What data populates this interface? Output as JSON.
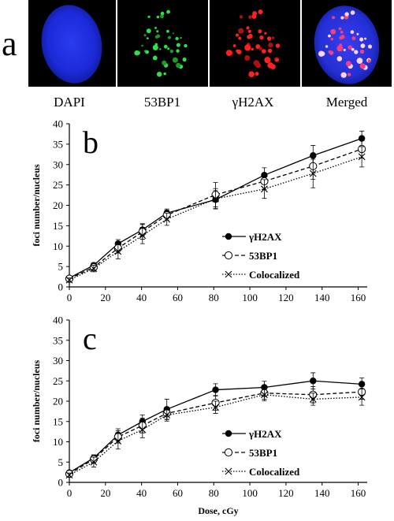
{
  "panel_a": {
    "letter": "a",
    "captions": [
      "DAPI",
      "53BP1",
      "γH2AX",
      "Merged"
    ]
  },
  "chart_data": [
    {
      "type": "line",
      "panel": "b",
      "title": "",
      "xlabel": "",
      "ylabel": "foci number/nucleus",
      "xlim": [
        0,
        165
      ],
      "ylim": [
        0,
        40
      ],
      "xticks": [
        0,
        20,
        40,
        60,
        80,
        100,
        120,
        140,
        160
      ],
      "yticks": [
        0,
        5,
        10,
        15,
        20,
        25,
        30,
        35,
        40
      ],
      "grid": false,
      "legend_position": "center-right",
      "x": [
        0,
        13.5,
        27,
        40.5,
        54,
        81,
        108,
        135,
        162
      ],
      "series": [
        {
          "name": "γH2AX",
          "marker": "filled-circle",
          "line": "solid",
          "values": [
            2.2,
            5.3,
            10.6,
            14.0,
            18.1,
            21.4,
            27.4,
            32.2,
            36.4
          ],
          "errors": [
            0.5,
            0.6,
            1.0,
            1.5,
            1.0,
            2.2,
            1.8,
            2.5,
            1.8
          ]
        },
        {
          "name": "53BP1",
          "marker": "open-circle",
          "line": "dashed",
          "values": [
            2.0,
            4.8,
            9.5,
            13.5,
            17.6,
            22.6,
            25.9,
            29.6,
            33.8
          ],
          "errors": [
            0.5,
            0.7,
            1.2,
            1.8,
            1.2,
            3.0,
            2.0,
            3.2,
            2.2
          ]
        },
        {
          "name": "Colocalized",
          "marker": "x",
          "line": "dotted",
          "values": [
            1.7,
            4.5,
            8.7,
            12.6,
            16.6,
            21.6,
            24.0,
            27.8,
            31.9
          ],
          "errors": [
            0.5,
            0.8,
            1.8,
            2.0,
            1.5,
            2.5,
            2.3,
            3.5,
            2.5
          ]
        }
      ]
    },
    {
      "type": "line",
      "panel": "c",
      "title": "",
      "xlabel": "Dose, cGy",
      "ylabel": "foci number/nucleus",
      "xlim": [
        0,
        165
      ],
      "ylim": [
        0,
        40
      ],
      "xticks": [
        0,
        20,
        40,
        60,
        80,
        100,
        120,
        140,
        160
      ],
      "yticks": [
        0,
        5,
        10,
        15,
        20,
        25,
        30,
        35,
        40
      ],
      "grid": false,
      "legend_position": "center-right",
      "x": [
        0,
        13.5,
        27,
        40.5,
        54,
        81,
        108,
        135,
        162
      ],
      "series": [
        {
          "name": "γH2AX",
          "marker": "filled-circle",
          "line": "solid",
          "values": [
            2.4,
            6.0,
            11.7,
            15.0,
            18.0,
            22.8,
            23.4,
            25.0,
            24.2
          ],
          "errors": [
            0.5,
            0.8,
            1.5,
            1.6,
            2.5,
            1.5,
            1.5,
            2.0,
            1.5
          ]
        },
        {
          "name": "53BP1",
          "marker": "open-circle",
          "line": "dashed",
          "values": [
            2.1,
            5.7,
            11.2,
            14.0,
            17.0,
            19.6,
            22.0,
            21.6,
            22.3
          ],
          "errors": [
            0.6,
            1.0,
            1.5,
            1.8,
            1.5,
            1.8,
            1.5,
            2.0,
            1.8
          ]
        },
        {
          "name": "Colocalized",
          "marker": "x",
          "line": "dotted",
          "values": [
            1.8,
            5.0,
            10.2,
            13.0,
            16.6,
            18.5,
            21.6,
            20.5,
            21.0
          ],
          "errors": [
            0.5,
            1.2,
            2.0,
            2.0,
            1.5,
            1.5,
            1.5,
            1.5,
            2.0
          ]
        }
      ]
    }
  ]
}
